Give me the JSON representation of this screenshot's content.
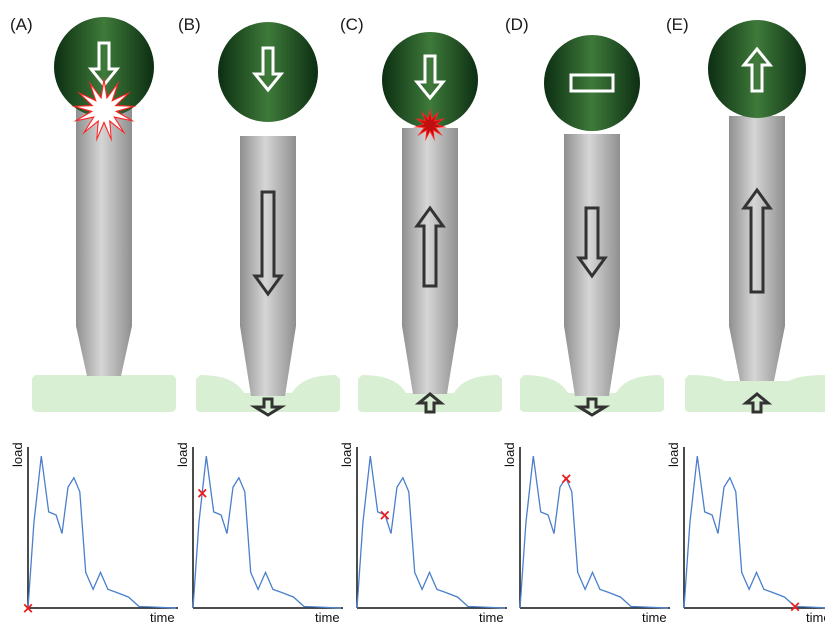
{
  "panels": [
    {
      "label": "(A)",
      "ball_symbol": "arrow-down",
      "rod_arrow": "none",
      "tip_arrow": "none",
      "impact": "large",
      "substrate": "flat",
      "marker_t": 0
    },
    {
      "label": "(B)",
      "ball_symbol": "arrow-down",
      "rod_arrow": "down",
      "tip_arrow": "down",
      "impact": "none",
      "substrate": "dented",
      "marker_t": 0.0625
    },
    {
      "label": "(C)",
      "ball_symbol": "arrow-down",
      "rod_arrow": "up",
      "tip_arrow": "up",
      "impact": "small",
      "substrate": "dented",
      "marker_t": 0.1875
    },
    {
      "label": "(D)",
      "ball_symbol": "rectangle",
      "rod_arrow": "down",
      "tip_arrow": "down",
      "impact": "none",
      "substrate": "dented",
      "marker_t": 0.3125
    },
    {
      "label": "(E)",
      "ball_symbol": "arrow-up",
      "rod_arrow": "up",
      "tip_arrow": "up",
      "impact": "none",
      "substrate": "dented-shallow",
      "marker_t": 0.75
    }
  ],
  "chart_data": {
    "type": "line",
    "xlabel": "time",
    "ylabel": "load",
    "series": [
      {
        "values": [
          [
            0,
            0
          ],
          [
            0.04,
            0.55
          ],
          [
            0.09,
            0.98
          ],
          [
            0.14,
            0.62
          ],
          [
            0.19,
            0.6
          ],
          [
            0.23,
            0.48
          ],
          [
            0.27,
            0.78
          ],
          [
            0.31,
            0.84
          ],
          [
            0.35,
            0.75
          ],
          [
            0.39,
            0.23
          ],
          [
            0.44,
            0.12
          ],
          [
            0.49,
            0.23
          ],
          [
            0.54,
            0.12
          ],
          [
            0.6,
            0.1
          ],
          [
            0.68,
            0.07
          ],
          [
            0.75,
            0.01
          ],
          [
            1.0,
            0.0
          ]
        ]
      }
    ],
    "marker_symbol": "×"
  },
  "colors": {
    "ball_dark": "#0c2e12",
    "ball_light": "#3e7a3a",
    "rod_light": "#d6d6d6",
    "rod_dark": "#8f8f8f",
    "substrate": "#d9efd3",
    "impact": "#ff2222",
    "marker": "#ee1c1c",
    "curve": "#4a7fcb",
    "arrow_stroke": "#333333"
  }
}
